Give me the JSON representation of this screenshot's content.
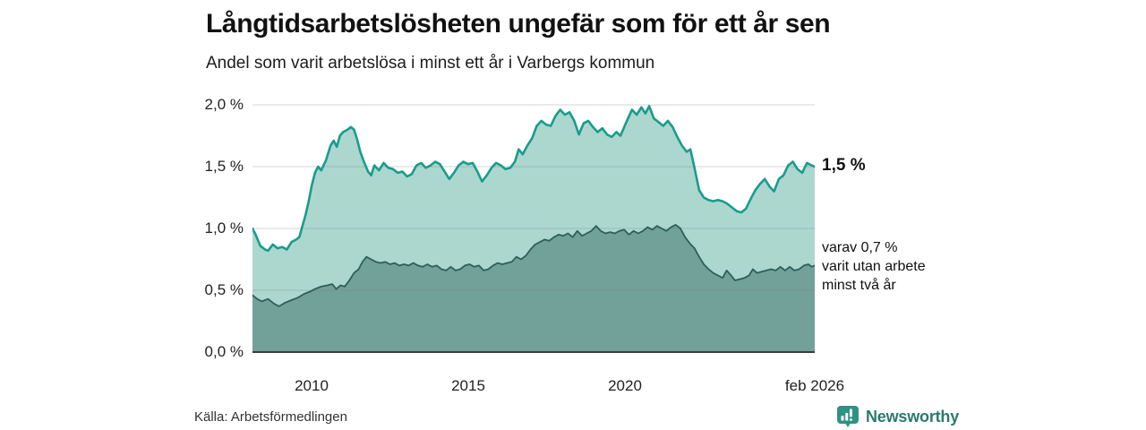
{
  "header": {
    "title": "Långtidsarbetslösheten ungefär som för ett år sen",
    "subtitle": "Andel som varit arbetslösa i minst ett år i Varbergs kommun"
  },
  "chart_data": {
    "type": "area",
    "title": "Långtidsarbetslösheten ungefär som för ett år sen",
    "subtitle": "Andel som varit arbetslösa i minst ett år i Varbergs kommun",
    "unit": "%",
    "x_domain": [
      2008.1,
      2026.1
    ],
    "ylim": [
      0,
      2.05
    ],
    "grid": true,
    "legend_position": "none",
    "y_ticks": [
      {
        "value": 2.0,
        "label": "2,0 %"
      },
      {
        "value": 1.5,
        "label": "1,5 %"
      },
      {
        "value": 1.0,
        "label": "1,0 %"
      },
      {
        "value": 0.5,
        "label": "0,5 %"
      },
      {
        "value": 0.0,
        "label": "0,0 %"
      }
    ],
    "x_ticks": [
      {
        "value": 2010,
        "label": "2010"
      },
      {
        "value": 2015,
        "label": "2015"
      },
      {
        "value": 2020,
        "label": "2020"
      },
      {
        "value": 2026.08,
        "label": "feb 2026"
      }
    ],
    "series": [
      {
        "name": "Arbetslösa minst ett år",
        "line_color": "#1a9c8c",
        "fill_color": "#abd7cf",
        "line_width": 2.6,
        "points": [
          [
            2008.1,
            1.0
          ],
          [
            2008.2,
            0.95
          ],
          [
            2008.35,
            0.86
          ],
          [
            2008.5,
            0.83
          ],
          [
            2008.6,
            0.82
          ],
          [
            2008.75,
            0.87
          ],
          [
            2008.9,
            0.84
          ],
          [
            2009.05,
            0.85
          ],
          [
            2009.2,
            0.83
          ],
          [
            2009.35,
            0.89
          ],
          [
            2009.5,
            0.91
          ],
          [
            2009.6,
            0.93
          ],
          [
            2009.7,
            1.02
          ],
          [
            2009.8,
            1.11
          ],
          [
            2009.9,
            1.22
          ],
          [
            2010.0,
            1.35
          ],
          [
            2010.1,
            1.45
          ],
          [
            2010.2,
            1.5
          ],
          [
            2010.3,
            1.47
          ],
          [
            2010.45,
            1.55
          ],
          [
            2010.6,
            1.67
          ],
          [
            2010.7,
            1.71
          ],
          [
            2010.8,
            1.66
          ],
          [
            2010.9,
            1.75
          ],
          [
            2011.0,
            1.78
          ],
          [
            2011.15,
            1.8
          ],
          [
            2011.25,
            1.82
          ],
          [
            2011.35,
            1.8
          ],
          [
            2011.45,
            1.72
          ],
          [
            2011.55,
            1.62
          ],
          [
            2011.65,
            1.55
          ],
          [
            2011.8,
            1.46
          ],
          [
            2011.9,
            1.43
          ],
          [
            2012.0,
            1.51
          ],
          [
            2012.15,
            1.47
          ],
          [
            2012.3,
            1.53
          ],
          [
            2012.45,
            1.49
          ],
          [
            2012.6,
            1.48
          ],
          [
            2012.75,
            1.45
          ],
          [
            2012.9,
            1.46
          ],
          [
            2013.05,
            1.42
          ],
          [
            2013.2,
            1.44
          ],
          [
            2013.35,
            1.51
          ],
          [
            2013.5,
            1.53
          ],
          [
            2013.65,
            1.49
          ],
          [
            2013.8,
            1.51
          ],
          [
            2013.95,
            1.54
          ],
          [
            2014.1,
            1.52
          ],
          [
            2014.25,
            1.46
          ],
          [
            2014.4,
            1.4
          ],
          [
            2014.55,
            1.45
          ],
          [
            2014.7,
            1.51
          ],
          [
            2014.85,
            1.54
          ],
          [
            2015.0,
            1.52
          ],
          [
            2015.15,
            1.53
          ],
          [
            2015.3,
            1.46
          ],
          [
            2015.45,
            1.38
          ],
          [
            2015.6,
            1.43
          ],
          [
            2015.75,
            1.49
          ],
          [
            2015.9,
            1.53
          ],
          [
            2016.05,
            1.51
          ],
          [
            2016.2,
            1.48
          ],
          [
            2016.35,
            1.49
          ],
          [
            2016.5,
            1.54
          ],
          [
            2016.62,
            1.64
          ],
          [
            2016.75,
            1.6
          ],
          [
            2016.9,
            1.67
          ],
          [
            2017.05,
            1.73
          ],
          [
            2017.2,
            1.83
          ],
          [
            2017.35,
            1.87
          ],
          [
            2017.5,
            1.84
          ],
          [
            2017.65,
            1.83
          ],
          [
            2017.8,
            1.91
          ],
          [
            2017.95,
            1.96
          ],
          [
            2018.1,
            1.92
          ],
          [
            2018.25,
            1.94
          ],
          [
            2018.4,
            1.87
          ],
          [
            2018.55,
            1.76
          ],
          [
            2018.7,
            1.85
          ],
          [
            2018.85,
            1.87
          ],
          [
            2019.0,
            1.82
          ],
          [
            2019.15,
            1.78
          ],
          [
            2019.3,
            1.81
          ],
          [
            2019.45,
            1.76
          ],
          [
            2019.6,
            1.74
          ],
          [
            2019.75,
            1.78
          ],
          [
            2019.88,
            1.75
          ],
          [
            2020.0,
            1.82
          ],
          [
            2020.12,
            1.89
          ],
          [
            2020.25,
            1.96
          ],
          [
            2020.4,
            1.92
          ],
          [
            2020.55,
            1.98
          ],
          [
            2020.68,
            1.93
          ],
          [
            2020.8,
            1.99
          ],
          [
            2020.95,
            1.89
          ],
          [
            2021.1,
            1.86
          ],
          [
            2021.25,
            1.83
          ],
          [
            2021.4,
            1.87
          ],
          [
            2021.55,
            1.82
          ],
          [
            2021.7,
            1.74
          ],
          [
            2021.85,
            1.67
          ],
          [
            2022.0,
            1.62
          ],
          [
            2022.12,
            1.64
          ],
          [
            2022.25,
            1.49
          ],
          [
            2022.4,
            1.31
          ],
          [
            2022.55,
            1.25
          ],
          [
            2022.7,
            1.23
          ],
          [
            2022.85,
            1.22
          ],
          [
            2023.0,
            1.23
          ],
          [
            2023.15,
            1.22
          ],
          [
            2023.3,
            1.2
          ],
          [
            2023.45,
            1.17
          ],
          [
            2023.6,
            1.14
          ],
          [
            2023.75,
            1.13
          ],
          [
            2023.9,
            1.16
          ],
          [
            2024.05,
            1.24
          ],
          [
            2024.2,
            1.31
          ],
          [
            2024.35,
            1.36
          ],
          [
            2024.5,
            1.4
          ],
          [
            2024.65,
            1.34
          ],
          [
            2024.8,
            1.3
          ],
          [
            2024.95,
            1.4
          ],
          [
            2025.1,
            1.43
          ],
          [
            2025.25,
            1.51
          ],
          [
            2025.4,
            1.54
          ],
          [
            2025.55,
            1.48
          ],
          [
            2025.7,
            1.45
          ],
          [
            2025.85,
            1.53
          ],
          [
            2026.0,
            1.51
          ],
          [
            2026.1,
            1.5
          ]
        ]
      },
      {
        "name": "Utan arbete minst två år",
        "line_color": "#2f5f58",
        "fill_color": "#72a19a",
        "line_width": 1.8,
        "points": [
          [
            2008.1,
            0.46
          ],
          [
            2008.25,
            0.43
          ],
          [
            2008.4,
            0.41
          ],
          [
            2008.6,
            0.43
          ],
          [
            2008.8,
            0.39
          ],
          [
            2008.95,
            0.37
          ],
          [
            2009.15,
            0.4
          ],
          [
            2009.35,
            0.42
          ],
          [
            2009.55,
            0.44
          ],
          [
            2009.75,
            0.47
          ],
          [
            2009.95,
            0.49
          ],
          [
            2010.1,
            0.51
          ],
          [
            2010.3,
            0.53
          ],
          [
            2010.5,
            0.54
          ],
          [
            2010.65,
            0.55
          ],
          [
            2010.78,
            0.51
          ],
          [
            2010.92,
            0.54
          ],
          [
            2011.05,
            0.53
          ],
          [
            2011.2,
            0.58
          ],
          [
            2011.35,
            0.64
          ],
          [
            2011.5,
            0.67
          ],
          [
            2011.62,
            0.73
          ],
          [
            2011.75,
            0.77
          ],
          [
            2011.9,
            0.75
          ],
          [
            2012.05,
            0.73
          ],
          [
            2012.2,
            0.72
          ],
          [
            2012.35,
            0.73
          ],
          [
            2012.5,
            0.71
          ],
          [
            2012.65,
            0.72
          ],
          [
            2012.8,
            0.7
          ],
          [
            2012.95,
            0.71
          ],
          [
            2013.1,
            0.7
          ],
          [
            2013.25,
            0.72
          ],
          [
            2013.4,
            0.7
          ],
          [
            2013.55,
            0.69
          ],
          [
            2013.7,
            0.71
          ],
          [
            2013.85,
            0.69
          ],
          [
            2014.0,
            0.7
          ],
          [
            2014.15,
            0.67
          ],
          [
            2014.3,
            0.66
          ],
          [
            2014.45,
            0.69
          ],
          [
            2014.6,
            0.66
          ],
          [
            2014.75,
            0.67
          ],
          [
            2014.9,
            0.7
          ],
          [
            2015.05,
            0.71
          ],
          [
            2015.2,
            0.69
          ],
          [
            2015.35,
            0.7
          ],
          [
            2015.5,
            0.66
          ],
          [
            2015.65,
            0.67
          ],
          [
            2015.8,
            0.7
          ],
          [
            2015.95,
            0.72
          ],
          [
            2016.1,
            0.71
          ],
          [
            2016.25,
            0.72
          ],
          [
            2016.4,
            0.73
          ],
          [
            2016.55,
            0.77
          ],
          [
            2016.7,
            0.75
          ],
          [
            2016.85,
            0.78
          ],
          [
            2017.0,
            0.83
          ],
          [
            2017.15,
            0.87
          ],
          [
            2017.3,
            0.89
          ],
          [
            2017.45,
            0.91
          ],
          [
            2017.6,
            0.9
          ],
          [
            2017.75,
            0.93
          ],
          [
            2017.9,
            0.95
          ],
          [
            2018.05,
            0.94
          ],
          [
            2018.2,
            0.96
          ],
          [
            2018.35,
            0.93
          ],
          [
            2018.5,
            0.98
          ],
          [
            2018.65,
            0.94
          ],
          [
            2018.8,
            0.96
          ],
          [
            2018.95,
            0.98
          ],
          [
            2019.1,
            1.02
          ],
          [
            2019.25,
            0.98
          ],
          [
            2019.4,
            0.96
          ],
          [
            2019.55,
            0.97
          ],
          [
            2019.7,
            0.96
          ],
          [
            2019.85,
            0.98
          ],
          [
            2020.0,
            0.99
          ],
          [
            2020.15,
            0.95
          ],
          [
            2020.3,
            0.98
          ],
          [
            2020.45,
            0.96
          ],
          [
            2020.6,
            0.98
          ],
          [
            2020.75,
            1.01
          ],
          [
            2020.9,
            0.99
          ],
          [
            2021.05,
            1.02
          ],
          [
            2021.2,
            1.0
          ],
          [
            2021.35,
            0.98
          ],
          [
            2021.5,
            1.01
          ],
          [
            2021.65,
            1.03
          ],
          [
            2021.8,
            1.0
          ],
          [
            2021.95,
            0.93
          ],
          [
            2022.1,
            0.88
          ],
          [
            2022.25,
            0.84
          ],
          [
            2022.4,
            0.77
          ],
          [
            2022.55,
            0.71
          ],
          [
            2022.7,
            0.67
          ],
          [
            2022.85,
            0.64
          ],
          [
            2023.0,
            0.62
          ],
          [
            2023.15,
            0.6
          ],
          [
            2023.28,
            0.66
          ],
          [
            2023.42,
            0.62
          ],
          [
            2023.55,
            0.58
          ],
          [
            2023.7,
            0.59
          ],
          [
            2023.85,
            0.6
          ],
          [
            2024.0,
            0.62
          ],
          [
            2024.12,
            0.67
          ],
          [
            2024.25,
            0.64
          ],
          [
            2024.4,
            0.65
          ],
          [
            2024.55,
            0.66
          ],
          [
            2024.7,
            0.67
          ],
          [
            2024.85,
            0.66
          ],
          [
            2025.0,
            0.69
          ],
          [
            2025.15,
            0.66
          ],
          [
            2025.3,
            0.69
          ],
          [
            2025.45,
            0.66
          ],
          [
            2025.6,
            0.67
          ],
          [
            2025.75,
            0.7
          ],
          [
            2025.9,
            0.71
          ],
          [
            2026.0,
            0.69
          ],
          [
            2026.1,
            0.7
          ]
        ]
      }
    ],
    "annotations": {
      "latest_total_label": "1,5 %",
      "secondary_line1": "varav 0,7 %",
      "secondary_line2": "varit utan arbete",
      "secondary_line3": "minst två år"
    },
    "latest": {
      "total_pct": 1.5,
      "two_years_pct": 0.7,
      "period": "feb 2026"
    }
  },
  "footer": {
    "source": "Källa: Arbetsförmedlingen",
    "brand": "Newsworthy"
  },
  "colors": {
    "total_line": "#1a9c8c",
    "total_fill": "#abd7cf",
    "two_year_line": "#2f5f58",
    "two_year_fill": "#72a19a",
    "axis_line": "#3a3a3a",
    "grid_line": "#d9d9d9",
    "brand_teal": "#2b7a6e",
    "brand_icon": "#2d9384"
  }
}
